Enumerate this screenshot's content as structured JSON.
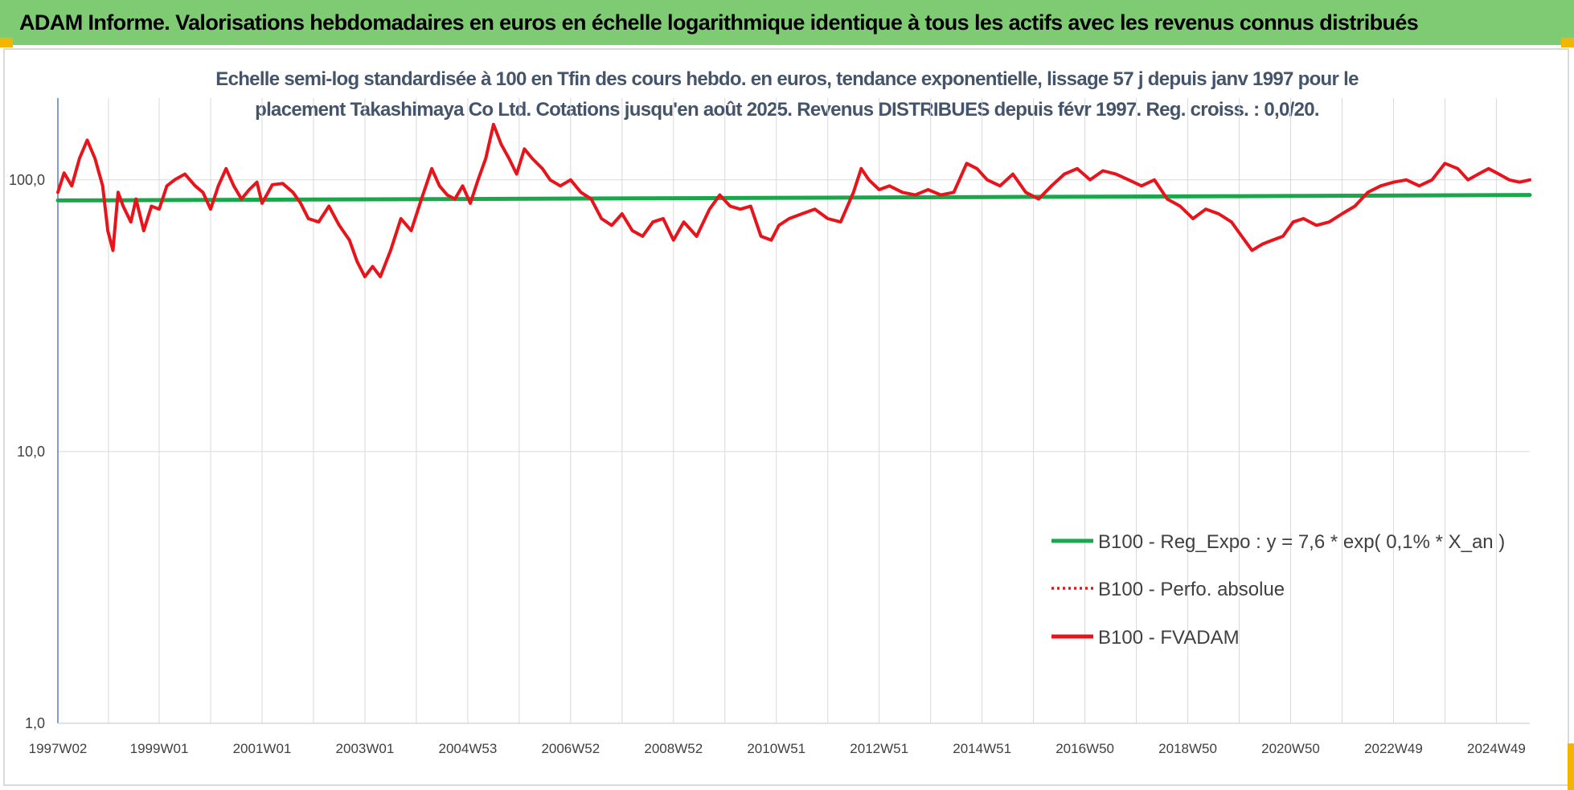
{
  "banner": {
    "title": "ADAM Informe. Valorisations hebdomadaires en euros en échelle logarithmique identique à tous les actifs avec les revenus connus distribués"
  },
  "colors": {
    "banner_bg": "#7fcb74",
    "regression": "#1aa64a",
    "fvadam": "#e8141b",
    "perfo": "#e8141b",
    "grid": "#d9d9d9",
    "text": "#404040",
    "corner": "#f2b600"
  },
  "chart_data": {
    "type": "line",
    "title_lines": [
      "Echelle semi-log standardisée à 100 en Tfin des cours hebdo. en euros, tendance exponentielle, lissage 57 j depuis janv 1997 pour le",
      "placement Takashimaya Co Ltd. Cotations jusqu'en août 2025. Revenus DISTRIBUES depuis févr 1997. Reg. croiss. : 0,0/20."
    ],
    "y_scale": "log",
    "ylim": [
      1,
      200
    ],
    "y_ticks": [
      {
        "value": 1,
        "label": "1,0"
      },
      {
        "value": 10,
        "label": "10,0"
      },
      {
        "value": 100,
        "label": "100,0"
      }
    ],
    "xlim": [
      1997.03,
      2025.65
    ],
    "x_ticks": [
      {
        "value": 1997.03,
        "label": "1997W02"
      },
      {
        "value": 1999.0,
        "label": "1999W01"
      },
      {
        "value": 2001.0,
        "label": "2001W01"
      },
      {
        "value": 2003.0,
        "label": "2003W01"
      },
      {
        "value": 2005.0,
        "label": "2004W53"
      },
      {
        "value": 2007.0,
        "label": "2006W52"
      },
      {
        "value": 2009.0,
        "label": "2008W52"
      },
      {
        "value": 2011.0,
        "label": "2010W51"
      },
      {
        "value": 2013.0,
        "label": "2012W51"
      },
      {
        "value": 2015.0,
        "label": "2014W51"
      },
      {
        "value": 2017.0,
        "label": "2016W50"
      },
      {
        "value": 2019.0,
        "label": "2018W50"
      },
      {
        "value": 2021.0,
        "label": "2020W50"
      },
      {
        "value": 2023.0,
        "label": "2022W49"
      },
      {
        "value": 2025.0,
        "label": "2024W49"
      }
    ],
    "grid": {
      "vertical": true,
      "horizontal": true
    },
    "legend_position": "bottom-right",
    "series": [
      {
        "name": "B100 - Reg_Expo : y = 7,6 * exp( 0,1% *  X_an )",
        "style": "solid-green",
        "x": [
          1997.03,
          2000.0,
          2005.0,
          2010.0,
          2015.0,
          2020.0,
          2025.65
        ],
        "y": [
          84.0,
          84.4,
          85.0,
          85.7,
          86.4,
          87.1,
          88.0
        ]
      },
      {
        "name": "B100 - Perfo. absolue",
        "style": "dotted-red",
        "x": [],
        "y": []
      },
      {
        "name": "B100 - FVADAM",
        "style": "solid-red",
        "x": [
          1997.03,
          1997.15,
          1997.3,
          1997.45,
          1997.6,
          1997.75,
          1997.9,
          1998.0,
          1998.1,
          1998.2,
          1998.3,
          1998.45,
          1998.55,
          1998.7,
          1998.85,
          1999.0,
          1999.15,
          1999.3,
          1999.5,
          1999.7,
          1999.85,
          2000.0,
          2000.15,
          2000.3,
          2000.45,
          2000.6,
          2000.75,
          2000.9,
          2001.0,
          2001.2,
          2001.4,
          2001.6,
          2001.75,
          2001.9,
          2002.1,
          2002.3,
          2002.5,
          2002.7,
          2002.85,
          2003.0,
          2003.15,
          2003.3,
          2003.5,
          2003.7,
          2003.9,
          2004.1,
          2004.3,
          2004.45,
          2004.6,
          2004.75,
          2004.9,
          2005.05,
          2005.2,
          2005.35,
          2005.5,
          2005.65,
          2005.8,
          2005.95,
          2006.1,
          2006.25,
          2006.45,
          2006.6,
          2006.8,
          2007.0,
          2007.2,
          2007.4,
          2007.6,
          2007.8,
          2008.0,
          2008.2,
          2008.4,
          2008.6,
          2008.8,
          2009.0,
          2009.2,
          2009.45,
          2009.7,
          2009.9,
          2010.1,
          2010.3,
          2010.5,
          2010.7,
          2010.9,
          2011.05,
          2011.25,
          2011.5,
          2011.75,
          2012.0,
          2012.25,
          2012.5,
          2012.65,
          2012.8,
          2013.0,
          2013.2,
          2013.45,
          2013.7,
          2013.95,
          2014.2,
          2014.45,
          2014.7,
          2014.9,
          2015.1,
          2015.35,
          2015.6,
          2015.85,
          2016.1,
          2016.35,
          2016.6,
          2016.85,
          2017.1,
          2017.35,
          2017.6,
          2017.85,
          2018.1,
          2018.35,
          2018.6,
          2018.85,
          2019.1,
          2019.35,
          2019.6,
          2019.85,
          2020.05,
          2020.25,
          2020.45,
          2020.65,
          2020.85,
          2021.05,
          2021.25,
          2021.5,
          2021.75,
          2022.0,
          2022.25,
          2022.5,
          2022.75,
          2023.0,
          2023.25,
          2023.5,
          2023.75,
          2024.0,
          2024.25,
          2024.45,
          2024.65,
          2024.85,
          2025.05,
          2025.25,
          2025.45,
          2025.65
        ],
        "y": [
          90,
          106,
          95,
          120,
          140,
          120,
          95,
          65,
          55,
          90,
          80,
          70,
          85,
          65,
          80,
          78,
          95,
          100,
          105,
          95,
          90,
          78,
          95,
          110,
          95,
          85,
          92,
          98,
          82,
          96,
          97,
          90,
          82,
          72,
          70,
          80,
          68,
          60,
          50,
          44,
          48,
          44,
          55,
          72,
          65,
          85,
          110,
          95,
          88,
          85,
          95,
          82,
          100,
          120,
          160,
          135,
          120,
          105,
          130,
          120,
          110,
          100,
          95,
          100,
          90,
          85,
          72,
          68,
          75,
          65,
          62,
          70,
          72,
          60,
          70,
          62,
          78,
          88,
          80,
          78,
          80,
          62,
          60,
          68,
          72,
          75,
          78,
          72,
          70,
          90,
          110,
          100,
          92,
          95,
          90,
          88,
          92,
          88,
          90,
          115,
          110,
          100,
          95,
          105,
          90,
          85,
          95,
          105,
          110,
          100,
          108,
          105,
          100,
          95,
          100,
          85,
          80,
          72,
          78,
          75,
          70,
          62,
          55,
          58,
          60,
          62,
          70,
          72,
          68,
          70,
          75,
          80,
          90,
          95,
          98,
          100,
          95,
          100,
          115,
          110,
          100,
          105,
          110,
          105,
          100,
          98,
          100
        ]
      }
    ]
  }
}
